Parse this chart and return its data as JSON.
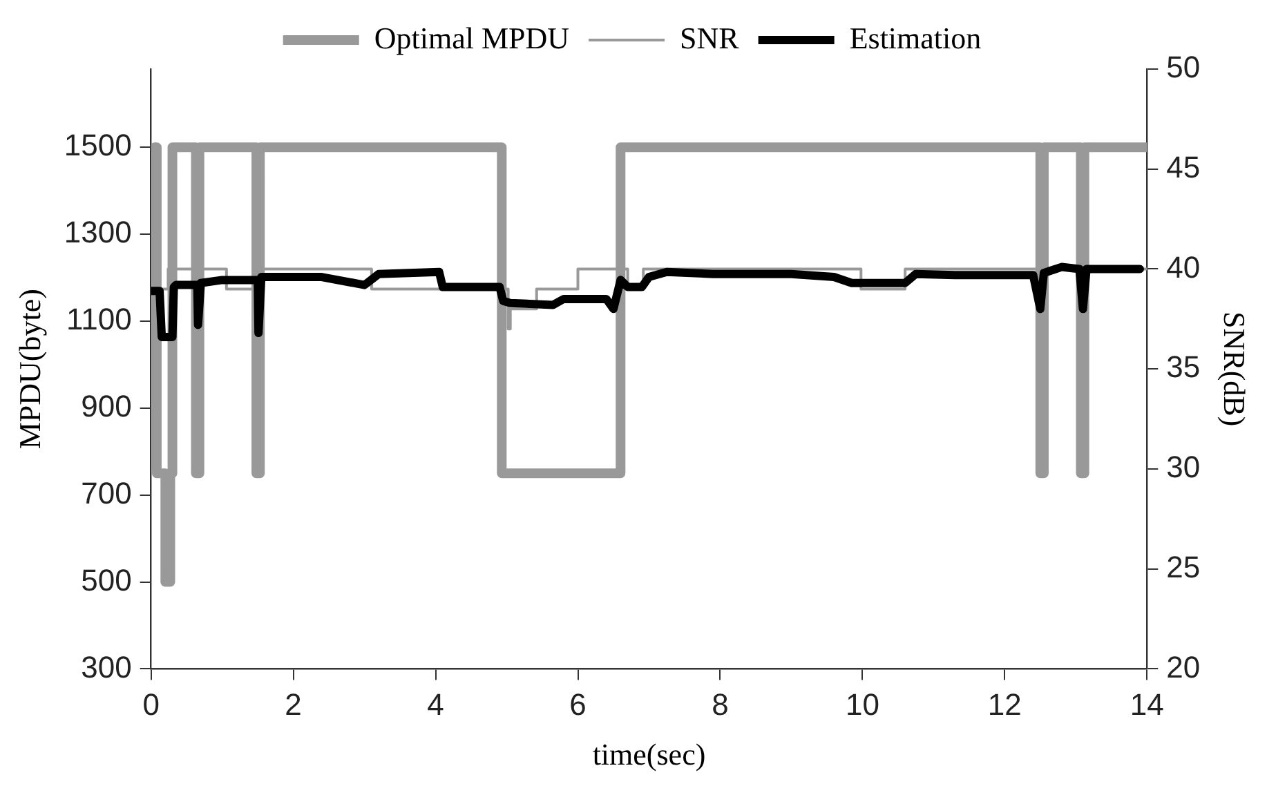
{
  "chart_data": {
    "type": "line",
    "xlabel": "time(sec)",
    "ylabel": "MPDU(byte)",
    "y2label": "SNR(dB)",
    "xlim": [
      0,
      14
    ],
    "xticks": [
      0,
      2,
      4,
      6,
      8,
      10,
      12,
      14
    ],
    "ylim": [
      300,
      1680
    ],
    "yticks": [
      300,
      500,
      700,
      900,
      1100,
      1300,
      1500
    ],
    "y2lim": [
      20,
      50
    ],
    "y2ticks": [
      20,
      25,
      30,
      35,
      40,
      45,
      50
    ],
    "grid": false,
    "legend": "top",
    "marker": "none",
    "line_style": "solid",
    "series": [
      {
        "name": "Optimal MPDU",
        "type": "step",
        "color": "#999999",
        "x": [
          0.05,
          0.08,
          0.2,
          0.27,
          0.3,
          0.63,
          0.68,
          1.48,
          1.53,
          4.93,
          6.6,
          12.5,
          12.55,
          13.07,
          13.12,
          14
        ],
        "values": [
          1500,
          750,
          500,
          750,
          1500,
          750,
          1500,
          750,
          1500,
          750,
          1500,
          750,
          1500,
          750,
          1500,
          1500
        ]
      },
      {
        "name": "SNR",
        "type": "step",
        "axis": "y2",
        "color": "#999999",
        "x": [
          0.05,
          0.24,
          1.06,
          1.53,
          3.1,
          4.92,
          5.02,
          5.05,
          5.42,
          6.0,
          6.7,
          6.92,
          9.98,
          10.6,
          14
        ],
        "values": [
          39,
          40,
          39,
          40,
          39,
          39,
          37,
          38,
          39,
          40,
          39,
          40,
          39,
          40,
          40
        ]
      },
      {
        "name": "Estimation",
        "type": "line",
        "axis": "y2",
        "color": "#000000",
        "x": [
          0,
          0.12,
          0.15,
          0.3,
          0.32,
          0.35,
          0.65,
          0.66,
          0.7,
          1.0,
          1.5,
          1.51,
          1.55,
          2.4,
          3.0,
          3.2,
          4.05,
          4.1,
          4.9,
          4.95,
          5.05,
          5.65,
          5.8,
          6.4,
          6.5,
          6.6,
          6.7,
          6.9,
          7.0,
          7.25,
          7.9,
          9.0,
          9.6,
          9.85,
          10.6,
          10.75,
          11.3,
          12.4,
          12.5,
          12.55,
          12.8,
          13.05,
          13.1,
          13.15,
          13.9
        ],
        "values": [
          38.9,
          38.9,
          36.6,
          36.6,
          39.1,
          39.2,
          39.2,
          37.2,
          39.3,
          39.45,
          39.45,
          36.8,
          39.6,
          39.6,
          39.2,
          39.75,
          39.85,
          39.1,
          39.1,
          38.4,
          38.3,
          38.2,
          38.5,
          38.5,
          38.0,
          39.45,
          39.1,
          39.1,
          39.6,
          39.85,
          39.75,
          39.75,
          39.6,
          39.3,
          39.3,
          39.75,
          39.7,
          39.7,
          38.0,
          39.8,
          40.1,
          40.0,
          38.0,
          40.0,
          40.0
        ]
      }
    ]
  }
}
